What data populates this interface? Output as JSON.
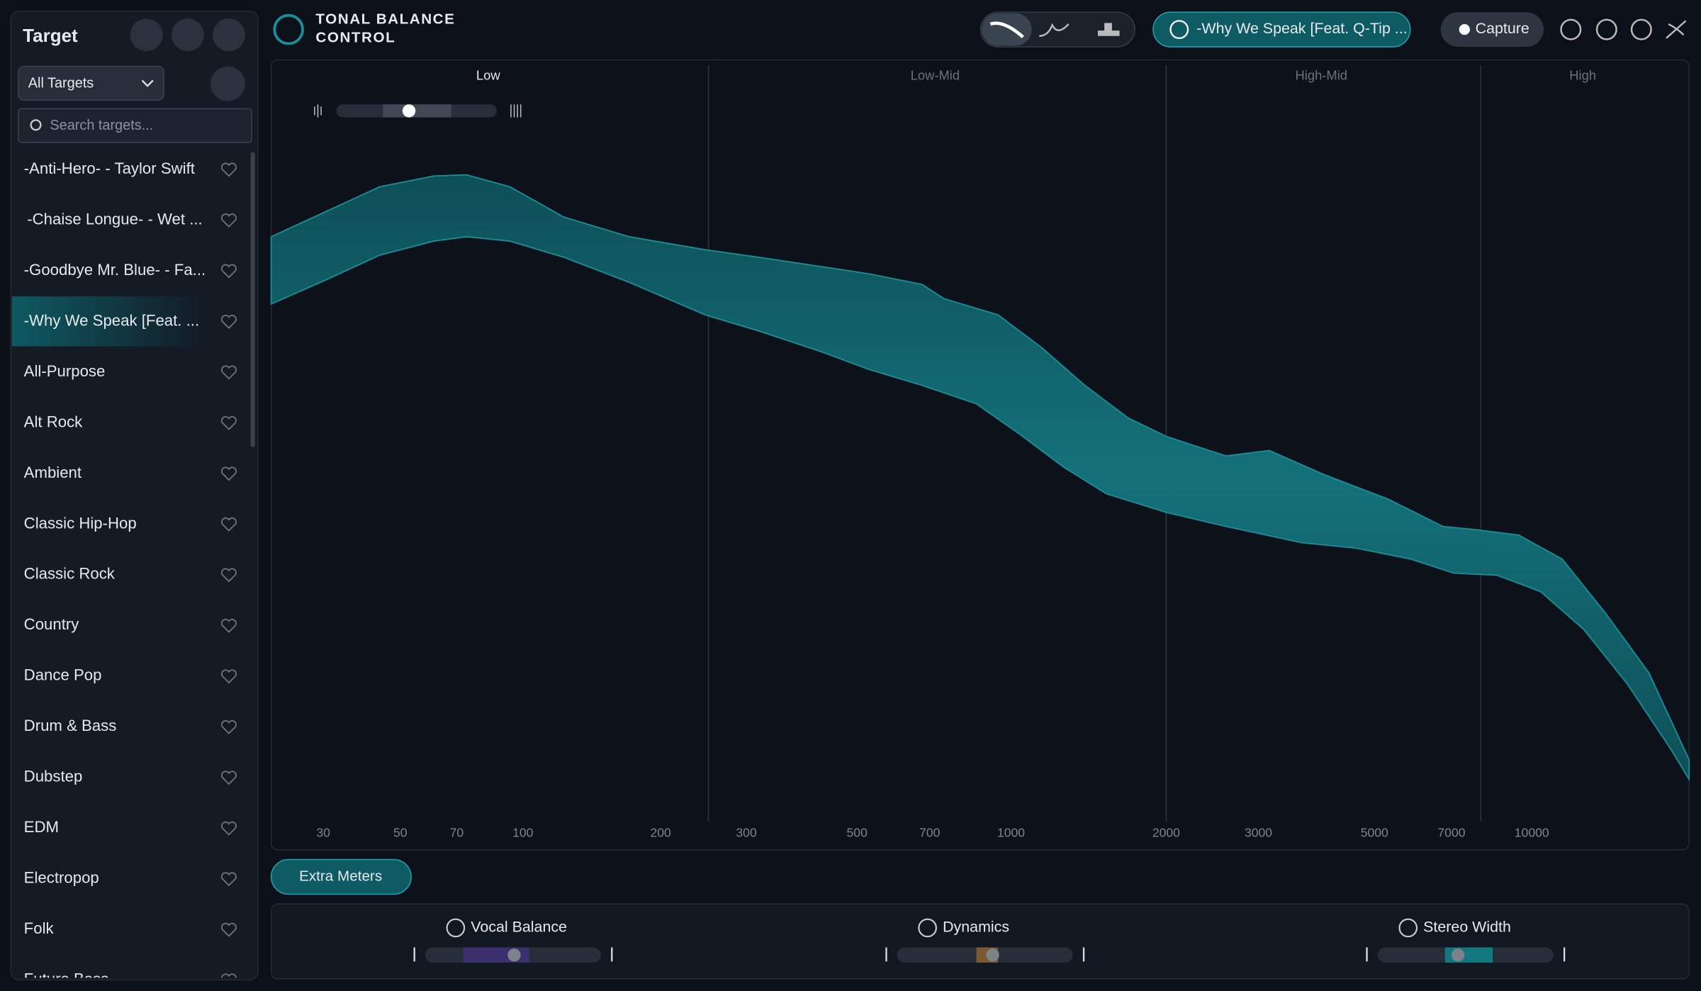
{
  "sidebar": {
    "title": "Target",
    "dropdown": "All Targets",
    "search_placeholder": "Search targets...",
    "items": [
      "-Anti-Hero- - Taylor Swift",
      "-Chaise Longue- - Wet ...",
      "-Goodbye Mr. Blue- - Fa...",
      "-Why We Speak [Feat. ...",
      "All-Purpose",
      "Alt Rock",
      "Ambient",
      "Classic Hip-Hop",
      "Classic Rock",
      "Country",
      "Dance Pop",
      "Drum & Bass",
      "Dubstep",
      "EDM",
      "Electropop",
      "Folk",
      "Future Bass"
    ]
  },
  "header": {
    "app_name_line1": "TONAL BALANCE",
    "app_name_line2": "CONTROL",
    "target_button": "-Why We Speak [Feat. Q-Tip ...",
    "capture": "Capture"
  },
  "spectrum": {
    "bands": [
      "Low",
      "Low-Mid",
      "High-Mid",
      "High"
    ],
    "frequencies": [
      30,
      50,
      70,
      100,
      200,
      300,
      500,
      700,
      1000,
      2000,
      3000,
      5000,
      7000,
      10000
    ]
  },
  "extra_meters": "Extra Meters",
  "meters": [
    "Vocal Balance",
    "Dynamics",
    "Stereo Width"
  ]
}
